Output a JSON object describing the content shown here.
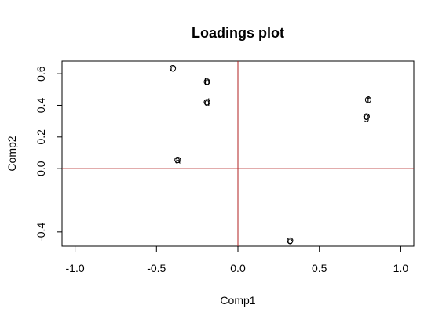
{
  "chart_data": {
    "type": "scatter",
    "title": "Loadings plot",
    "xlabel": "Comp1",
    "ylabel": "Comp2",
    "xlim": [
      -1.08,
      1.08
    ],
    "ylim": [
      -0.49,
      0.68
    ],
    "x_ticks": [
      -1.0,
      -0.5,
      0.0,
      0.5,
      1.0
    ],
    "x_tick_labels": [
      "-1.0",
      "-0.5",
      "0.0",
      "0.5",
      "1.0"
    ],
    "y_ticks": [
      -0.4,
      0.0,
      0.2,
      0.4,
      0.6
    ],
    "y_tick_labels": [
      "-0.4",
      "0.0",
      "0.2",
      "0.4",
      "0.6"
    ],
    "grid": false,
    "reference_lines": {
      "x": 0,
      "y": 0,
      "color": "#b22222"
    },
    "points": [
      {
        "label": "a",
        "x": -0.37,
        "y": 0.055
      },
      {
        "label": "b",
        "x": -0.19,
        "y": 0.55
      },
      {
        "label": "c",
        "x": -0.4,
        "y": 0.635
      },
      {
        "label": "d",
        "x": -0.19,
        "y": 0.42
      },
      {
        "label": "e",
        "x": 0.32,
        "y": -0.455
      },
      {
        "label": "f",
        "x": 0.8,
        "y": 0.435
      },
      {
        "label": "g",
        "x": 0.79,
        "y": 0.33
      }
    ]
  }
}
